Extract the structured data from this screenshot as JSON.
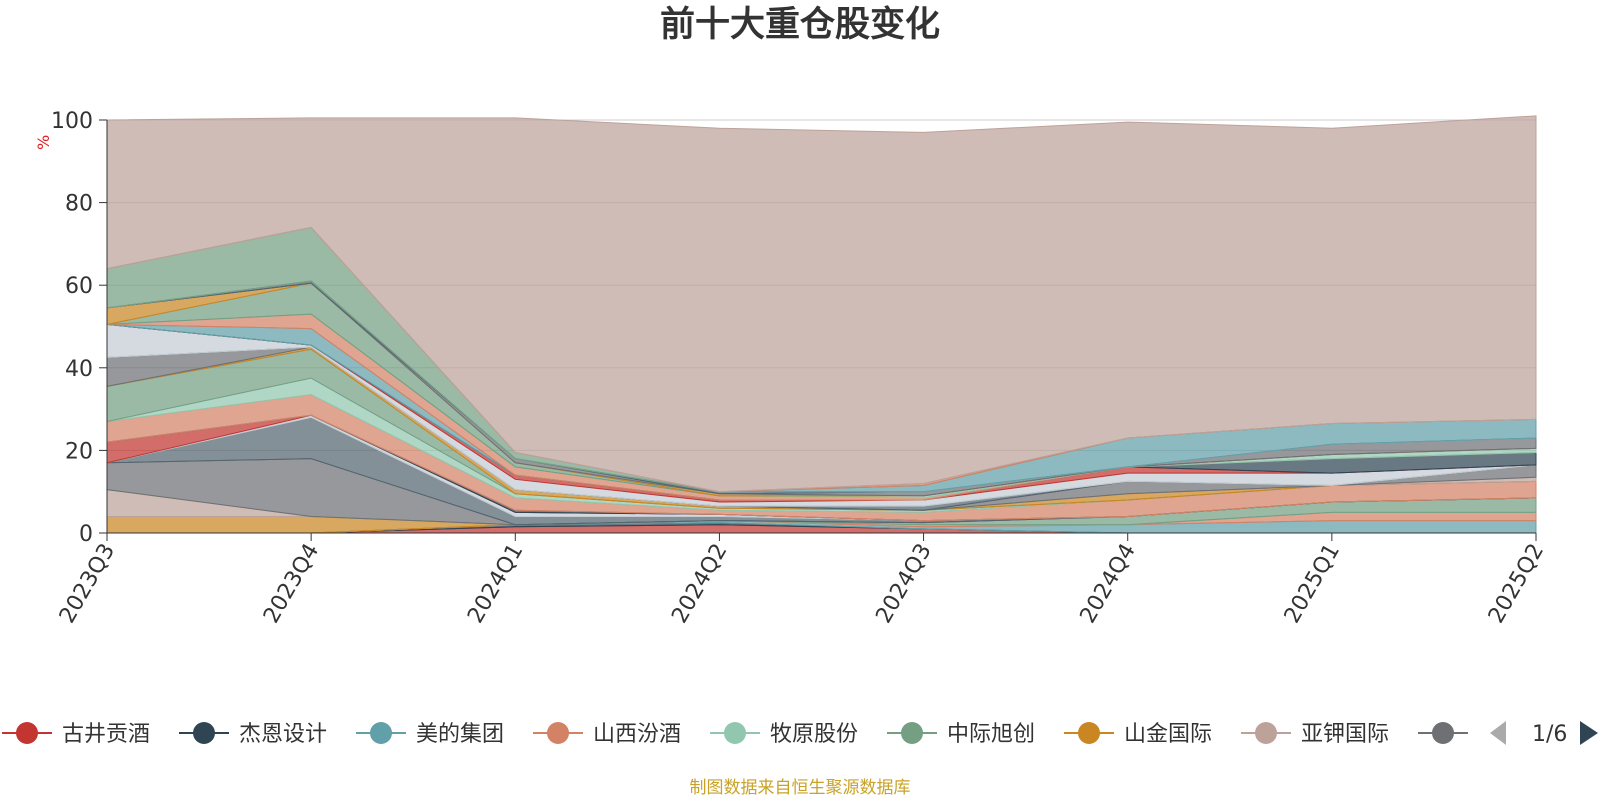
{
  "chart_data": {
    "type": "area",
    "title": "前十大重仓股变化",
    "ylabel": "%",
    "xlabel": "",
    "ylim": [
      0,
      100
    ],
    "yticks": [
      0,
      20,
      40,
      60,
      80,
      100
    ],
    "stacked": true,
    "grid": true,
    "categories": [
      "2023Q3",
      "2023Q4",
      "2024Q1",
      "2024Q2",
      "2024Q3",
      "2024Q4",
      "2025Q1",
      "2025Q2"
    ],
    "series": [
      {
        "name": "古井贡酒",
        "color": "#c23531",
        "values": [
          0,
          0,
          1.5,
          2,
          1,
          0,
          0,
          0
        ]
      },
      {
        "name": "杰恩设计",
        "color": "#2f4554",
        "values": [
          0,
          0,
          0.5,
          0.5,
          0,
          0,
          0,
          0
        ]
      },
      {
        "name": "美的集团",
        "color": "#61a0a8",
        "values": [
          0,
          0,
          0,
          0.5,
          0.5,
          2,
          3,
          3
        ]
      },
      {
        "name": "山西汾酒",
        "color": "#d48265",
        "values": [
          0,
          0,
          0,
          0,
          0.5,
          0,
          2,
          2
        ]
      },
      {
        "name": "牧原股份",
        "color": "#91c7ae",
        "values": [
          0,
          0,
          0,
          0,
          0,
          0,
          0,
          0
        ]
      },
      {
        "name": "中际旭创",
        "color": "#749f83",
        "values": [
          0,
          0,
          0,
          0,
          0.5,
          2,
          2.5,
          3.5
        ]
      },
      {
        "name": "山金国际",
        "color": "#ca8622",
        "values": [
          4,
          4,
          0,
          0,
          0,
          0,
          0,
          0
        ]
      },
      {
        "name": "亚钾国际",
        "color": "#bda29a",
        "values": [
          6.5,
          0,
          0,
          0,
          0,
          0,
          0,
          0
        ]
      },
      {
        "name": "",
        "color": "#6e7074",
        "values": [
          6.5,
          14,
          0,
          0,
          0,
          0,
          0,
          0
        ]
      },
      {
        "name": "",
        "color": "#546570",
        "values": [
          0,
          10,
          2,
          1,
          0.5,
          0,
          0,
          0
        ]
      },
      {
        "name": "",
        "color": "#c4ccd3",
        "values": [
          0,
          0.5,
          1,
          0.5,
          0,
          0,
          0,
          0
        ]
      },
      {
        "name": "",
        "color": "#c23531",
        "values": [
          5,
          0,
          0,
          0,
          0,
          0,
          0,
          0
        ]
      },
      {
        "name": "",
        "color": "#2f4554",
        "values": [
          0,
          0,
          0.5,
          0,
          0,
          0,
          0,
          0
        ]
      },
      {
        "name": "",
        "color": "#61a0a8",
        "values": [
          0,
          0,
          0,
          0,
          0,
          0,
          0,
          0
        ]
      },
      {
        "name": "",
        "color": "#d48265",
        "values": [
          5,
          5,
          3,
          1,
          2,
          4,
          4,
          4
        ]
      },
      {
        "name": "",
        "color": "#91c7ae",
        "values": [
          0,
          4,
          1,
          0.5,
          0.5,
          0,
          0,
          0
        ]
      },
      {
        "name": "",
        "color": "#749f83",
        "values": [
          8.5,
          7,
          0,
          0,
          0,
          0,
          0,
          0
        ]
      },
      {
        "name": "",
        "color": "#ca8622",
        "values": [
          0,
          0.5,
          1,
          0.5,
          0,
          1.5,
          0,
          0
        ]
      },
      {
        "name": "",
        "color": "#bda29a",
        "values": [
          0,
          0,
          0,
          0,
          0,
          0,
          0,
          1
        ]
      },
      {
        "name": "",
        "color": "#6e7074",
        "values": [
          7,
          0,
          0,
          0,
          0,
          3,
          0,
          3
        ]
      },
      {
        "name": "",
        "color": "#546570",
        "values": [
          0,
          0,
          0,
          0,
          1,
          0,
          0,
          0
        ]
      },
      {
        "name": "",
        "color": "#c4ccd3",
        "values": [
          8,
          0.5,
          2.5,
          1,
          1.5,
          2,
          3,
          0
        ]
      },
      {
        "name": "",
        "color": "#c23531",
        "values": [
          0,
          0,
          1,
          0.5,
          0,
          1.5,
          0,
          0
        ]
      },
      {
        "name": "",
        "color": "#2f4554",
        "values": [
          0,
          0,
          0,
          0,
          0,
          0,
          3.5,
          3
        ]
      },
      {
        "name": "",
        "color": "#61a0a8",
        "values": [
          0,
          4,
          0,
          0,
          0,
          0,
          0,
          0
        ]
      },
      {
        "name": "",
        "color": "#d48265",
        "values": [
          0,
          3.5,
          2,
          1,
          0.5,
          0,
          0,
          0
        ]
      },
      {
        "name": "",
        "color": "#91c7ae",
        "values": [
          0,
          0,
          0,
          0,
          0.5,
          0,
          1,
          1
        ]
      },
      {
        "name": "",
        "color": "#749f83",
        "values": [
          0,
          7.5,
          1,
          0,
          0,
          0,
          0,
          0
        ]
      },
      {
        "name": "",
        "color": "#ca8622",
        "values": [
          4,
          0,
          0,
          0.5,
          0,
          0,
          0,
          0
        ]
      },
      {
        "name": "",
        "color": "#bda29a",
        "values": [
          0,
          0,
          0,
          0,
          0,
          0,
          0,
          0
        ]
      },
      {
        "name": "",
        "color": "#6e7074",
        "values": [
          0,
          0,
          1,
          0,
          1,
          0,
          2.5,
          2.5
        ]
      },
      {
        "name": "",
        "color": "#546570",
        "values": [
          0,
          0.5,
          0,
          0.5,
          0,
          0,
          0,
          0
        ]
      },
      {
        "name": "",
        "color": "#c4ccd3",
        "values": [
          0,
          0,
          0,
          0,
          0,
          0,
          0,
          0
        ]
      },
      {
        "name": "",
        "color": "#61a0a8",
        "values": [
          0,
          0,
          0,
          0,
          1.5,
          7,
          5,
          4.5
        ]
      },
      {
        "name": "",
        "color": "#749f83",
        "values": [
          9.5,
          13,
          1.5,
          0,
          0,
          0,
          0,
          0
        ]
      },
      {
        "name": "",
        "color": "#d48265",
        "values": [
          0,
          0,
          0,
          0,
          0.5,
          0,
          0,
          0
        ]
      },
      {
        "name": "",
        "color": "#bda29a",
        "values": [
          36,
          26.5,
          81,
          88,
          85,
          76.5,
          71.5,
          73.5
        ]
      }
    ]
  },
  "legend": {
    "items": [
      {
        "name": "古井贡酒",
        "color": "#c23531"
      },
      {
        "name": "杰恩设计",
        "color": "#2f4554"
      },
      {
        "name": "美的集团",
        "color": "#61a0a8"
      },
      {
        "name": "山西汾酒",
        "color": "#d48265"
      },
      {
        "name": "牧原股份",
        "color": "#91c7ae"
      },
      {
        "name": "中际旭创",
        "color": "#749f83"
      },
      {
        "name": "山金国际",
        "color": "#ca8622"
      },
      {
        "name": "亚钾国际",
        "color": "#bda29a"
      },
      {
        "name": "",
        "color": "#6e7074"
      }
    ],
    "page": "1/6"
  },
  "source": "制图数据来自恒生聚源数据库"
}
